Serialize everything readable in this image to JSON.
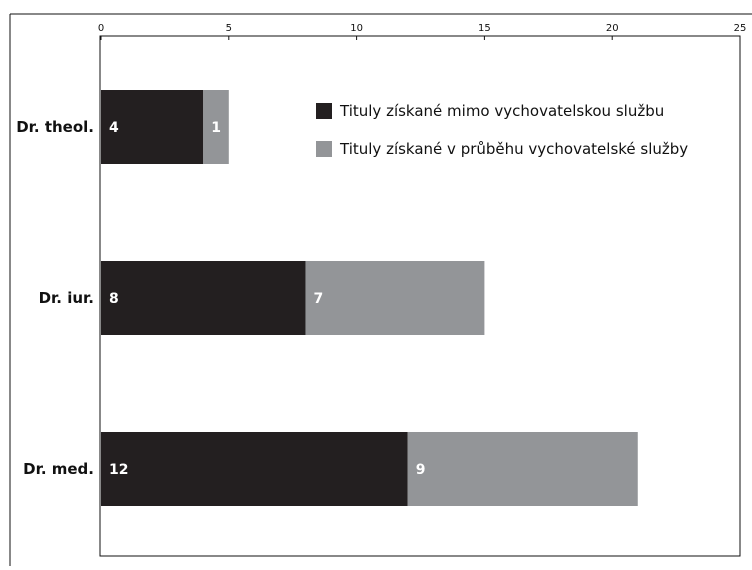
{
  "chart_data": {
    "type": "bar",
    "orientation": "horizontal",
    "stacked": true,
    "categories": [
      "Dr. theol.",
      "Dr. iur.",
      "Dr. med."
    ],
    "series": [
      {
        "name": "Tituly získané mimo vychovatelskou službu",
        "color": "#231f20",
        "values": [
          4,
          8,
          12
        ]
      },
      {
        "name": "Tituly získané v průběhu vychovatelské služby",
        "color": "#939598",
        "values": [
          1,
          7,
          9
        ]
      }
    ],
    "xlim": [
      0,
      25
    ],
    "xticks": [
      0,
      5,
      10,
      15,
      20,
      25
    ],
    "x_axis_position": "top",
    "grid": false,
    "legend_position": "top-right",
    "title": "",
    "xlabel": "",
    "ylabel": ""
  }
}
